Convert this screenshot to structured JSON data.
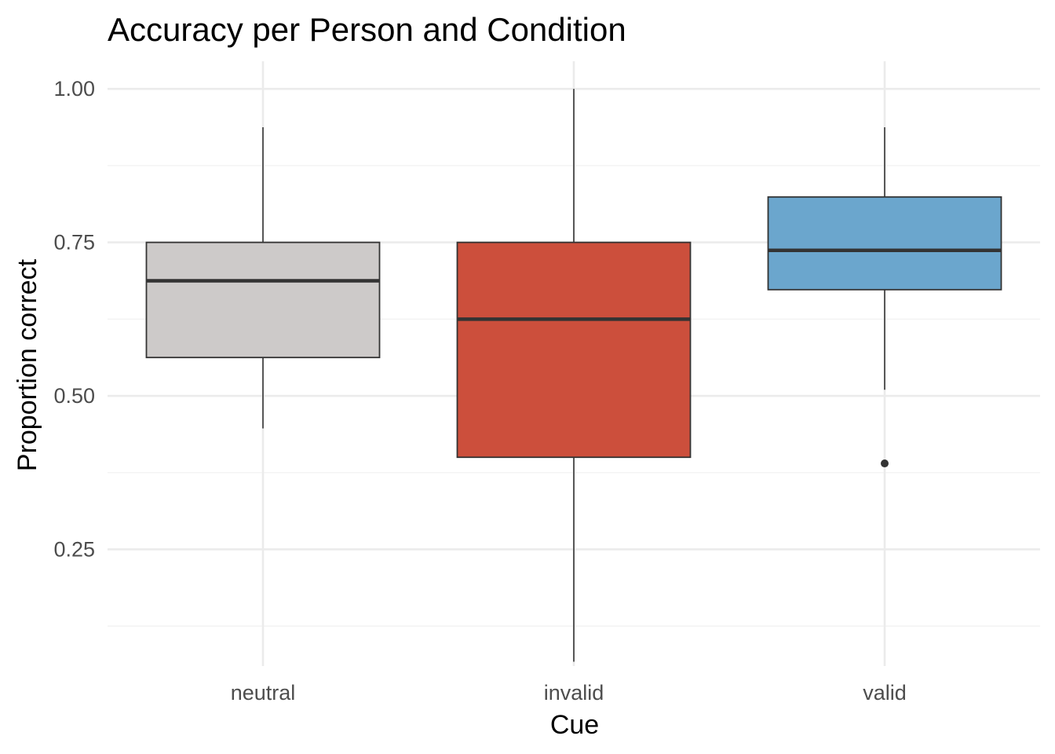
{
  "chart_data": {
    "type": "boxplot",
    "title": "Accuracy per Person and Condition",
    "xlabel": "Cue",
    "ylabel": "Proportion correct",
    "ylim": [
      0.06,
      1.045
    ],
    "yticks": [
      0.25,
      0.5,
      0.75,
      1.0
    ],
    "ytick_labels": [
      "0.25",
      "0.50",
      "0.75",
      "1.00"
    ],
    "yminor": [
      0.125,
      0.375,
      0.625,
      0.875
    ],
    "grid": true,
    "legend": "none",
    "categories": [
      "neutral",
      "invalid",
      "valid"
    ],
    "boxes": [
      {
        "category": "neutral",
        "min": 0.447,
        "q1": 0.5625,
        "median": 0.6875,
        "q3": 0.75,
        "max": 0.9375,
        "outliers": [],
        "color": "#CDCAC9"
      },
      {
        "category": "invalid",
        "min": 0.067,
        "q1": 0.4,
        "median": 0.625,
        "q3": 0.75,
        "max": 1.0,
        "outliers": [],
        "color": "#CC4F3C"
      },
      {
        "category": "valid",
        "min": 0.51,
        "q1": 0.673,
        "median": 0.737,
        "q3": 0.824,
        "max": 0.9375,
        "outliers": [
          0.39
        ],
        "color": "#6BA6CD"
      }
    ]
  }
}
